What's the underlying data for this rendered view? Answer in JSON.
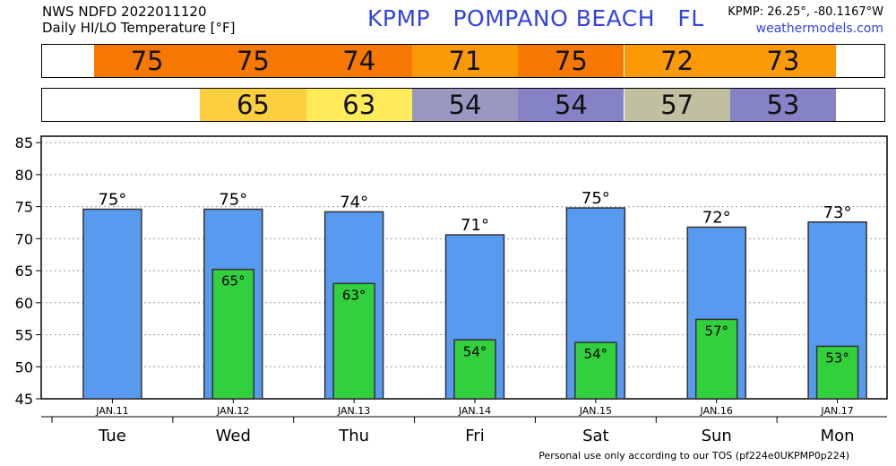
{
  "header": {
    "line1": "NWS NDFD 2022011120",
    "line2": "Daily HI/LO Temperature [°F]",
    "station": "KPMP",
    "location": "POMPANO BEACH",
    "state": "FL",
    "coords": "KPMP: 26.25°, -80.1167°W",
    "site": "weathermodels.com"
  },
  "hi_strip": [
    {
      "value": "75",
      "color": "#f77800"
    },
    {
      "value": "75",
      "color": "#f77800"
    },
    {
      "value": "74",
      "color": "#f77800"
    },
    {
      "value": "71",
      "color": "#fb9a05"
    },
    {
      "value": "75",
      "color": "#f77800"
    },
    {
      "value": "72",
      "color": "#fb9a05"
    },
    {
      "value": "73",
      "color": "#fb9a05"
    }
  ],
  "lo_strip": [
    {
      "value": "",
      "color": "#ffffff"
    },
    {
      "value": "65",
      "color": "#fbcf3e"
    },
    {
      "value": "63",
      "color": "#ffea5a"
    },
    {
      "value": "54",
      "color": "#9a98c0"
    },
    {
      "value": "54",
      "color": "#8682c6"
    },
    {
      "value": "57",
      "color": "#c0c0a0"
    },
    {
      "value": "53",
      "color": "#8682c6"
    }
  ],
  "chart_data": {
    "type": "bar",
    "categories": [
      "Tue",
      "Wed",
      "Thu",
      "Fri",
      "Sat",
      "Sun",
      "Mon"
    ],
    "dates": [
      "JAN.11",
      "JAN.12",
      "JAN.13",
      "JAN.14",
      "JAN.15",
      "JAN.16",
      "JAN.17"
    ],
    "series": [
      {
        "values": [
          74.6,
          74.6,
          74.2,
          70.6,
          74.8,
          71.8,
          72.6
        ],
        "labels": [
          "75°",
          "75°",
          "74°",
          "71°",
          "75°",
          "72°",
          "73°"
        ],
        "color": "#579aef"
      },
      {
        "values": [
          null,
          65.2,
          63.0,
          54.2,
          53.8,
          57.4,
          53.2
        ],
        "labels": [
          "",
          "65°",
          "63°",
          "54°",
          "54°",
          "57°",
          "53°"
        ],
        "color": "#33d03e"
      }
    ],
    "ylim": [
      45,
      86
    ],
    "yticks": [
      45,
      50,
      55,
      60,
      65,
      70,
      75,
      80,
      85
    ],
    "grid": true
  },
  "footer": "Personal use only according to our TOS (pf224e0UKPMP0p224)"
}
